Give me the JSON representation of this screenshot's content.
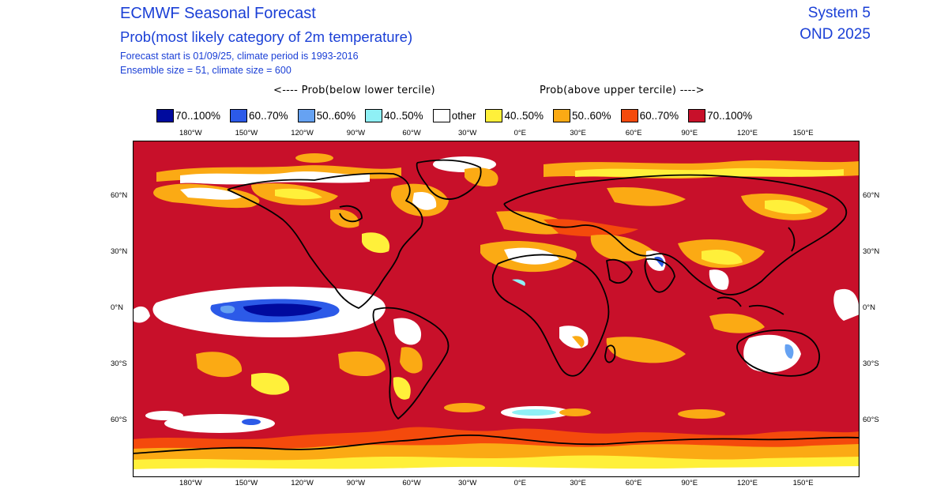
{
  "header": {
    "title": "ECMWF Seasonal Forecast",
    "subtitle": "Prob(most likely category of 2m temperature)",
    "info_line1": "Forecast start is 01/09/25, climate period is 1993-2016",
    "info_line2": "Ensemble size = 51, climate size = 600",
    "system": "System 5",
    "period": "OND 2025"
  },
  "legend": {
    "below_caption": "<---- Prob(below lower tercile)",
    "above_caption": "Prob(above upper tercile) ---->",
    "items": [
      {
        "label": "70..100%",
        "color": "#000a9e"
      },
      {
        "label": "60..70%",
        "color": "#2c5ae8"
      },
      {
        "label": "50..60%",
        "color": "#66a2f2"
      },
      {
        "label": "40..50%",
        "color": "#8ff0f5"
      },
      {
        "label": "other",
        "color": "#ffffff"
      },
      {
        "label": "40..50%",
        "color": "#fff03a"
      },
      {
        "label": "50..60%",
        "color": "#fbaa14"
      },
      {
        "label": "60..70%",
        "color": "#f44a0c"
      },
      {
        "label": "70..100%",
        "color": "#c8102a"
      }
    ]
  },
  "axes": {
    "lon_ticks": [
      "180°W",
      "150°W",
      "120°W",
      "90°W",
      "60°W",
      "30°W",
      "0°E",
      "30°E",
      "60°E",
      "90°E",
      "120°E",
      "150°E"
    ],
    "lat_ticks_left": [
      "60°N",
      "30°N",
      "0°N",
      "30°S",
      "60°S"
    ],
    "lat_ticks_right": [
      "60°N",
      "30°N",
      "0°N",
      "30°S",
      "60°S"
    ]
  },
  "colors": {
    "dominant": "#c8102a",
    "coastline": "#000000"
  }
}
